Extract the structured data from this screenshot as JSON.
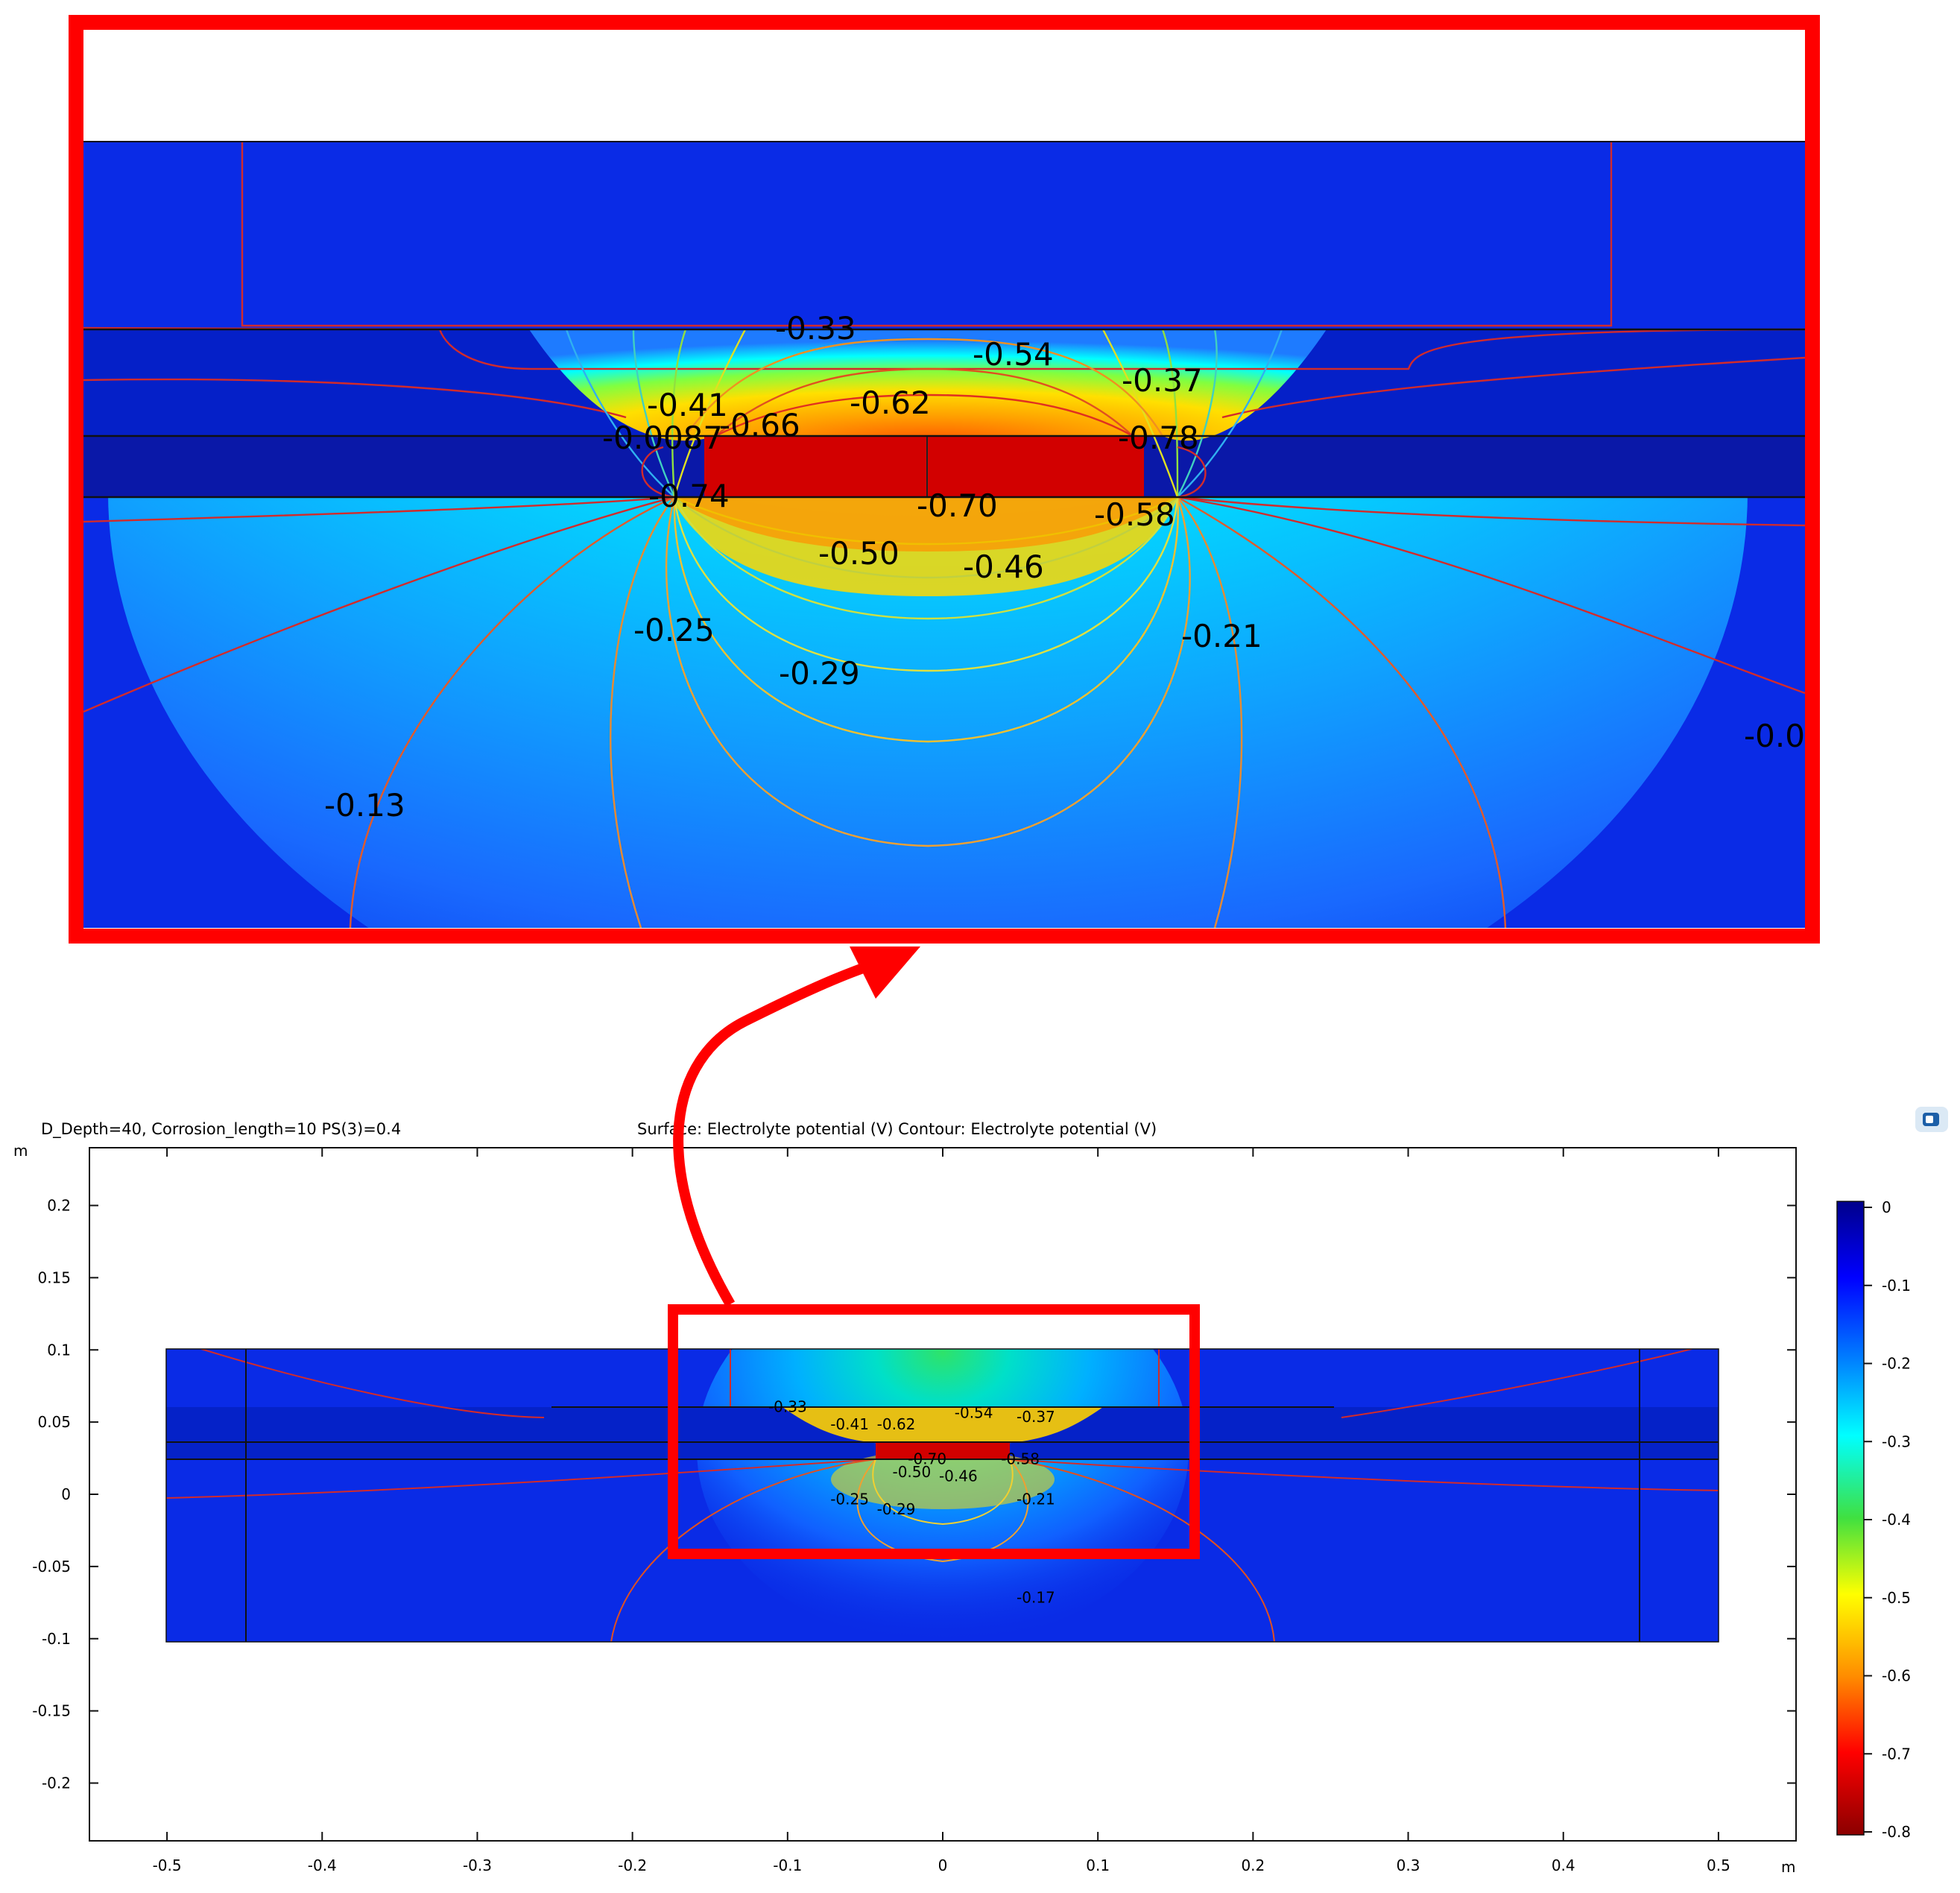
{
  "header": {
    "left_title": "D_Depth=40, Corrosion_length=10 PS(3)=0.4",
    "right_title": "Surface: Electrolyte potential (V)  Contour: Electrolyte potential (V)"
  },
  "axis_unit_y": "m",
  "axis_unit_x": "m",
  "chart_data": {
    "type": "heatmap",
    "title": "Surface: Electrolyte potential (V)  Contour: Electrolyte potential (V)",
    "subtitle": "D_Depth=40, Corrosion_length=10 PS(3)=0.4",
    "xlabel": "m",
    "ylabel": "m",
    "xlim": [
      -0.55,
      0.55
    ],
    "ylim": [
      -0.24,
      0.24
    ],
    "x_ticks": [
      -0.5,
      -0.4,
      -0.3,
      -0.2,
      -0.1,
      0,
      0.1,
      0.2,
      0.3,
      0.4,
      0.5
    ],
    "x_tick_labels": [
      "-0.5",
      "-0.4",
      "-0.3",
      "-0.2",
      "-0.1",
      "0",
      "0.1",
      "0.2",
      "0.3",
      "0.4",
      "0.5"
    ],
    "y_ticks": [
      0.2,
      0.15,
      0.1,
      0.05,
      0,
      -0.05,
      -0.1,
      -0.15,
      -0.2
    ],
    "y_tick_labels": [
      "0.2",
      "0.15",
      "0.1",
      "0.05",
      "0",
      "-0.05",
      "-0.1",
      "-0.15",
      "-0.2"
    ],
    "domain": {
      "x": [
        -0.5,
        0.5
      ],
      "y": [
        -0.1,
        0.1
      ]
    },
    "anode": {
      "x": [
        -0.05,
        0.05
      ],
      "y": [
        0.02,
        0.035
      ]
    },
    "colorbar": {
      "ticks": [
        0,
        -0.1,
        -0.2,
        -0.3,
        -0.4,
        -0.5,
        -0.6,
        -0.7,
        -0.8
      ],
      "tick_labels": [
        "0",
        "-0.1",
        "-0.2",
        "-0.3",
        "-0.4",
        "-0.5",
        "-0.6",
        "-0.7",
        "-0.8"
      ],
      "range": [
        -0.8,
        0
      ],
      "colormap": "rainbow",
      "colors": [
        "#00008b",
        "#0000ff",
        "#00bfff",
        "#00ffff",
        "#3cdc3c",
        "#ffff00",
        "#ff8c00",
        "#ff0000",
        "#8b0000"
      ]
    },
    "contour_labels_main": [
      {
        "label": "-0.33",
        "x": -0.1,
        "y": 0.057
      },
      {
        "label": "-0.54",
        "x": 0.02,
        "y": 0.053
      },
      {
        "label": "-0.37",
        "x": 0.06,
        "y": 0.05
      },
      {
        "label": "-0.41",
        "x": -0.06,
        "y": 0.045
      },
      {
        "label": "-0.62",
        "x": -0.03,
        "y": 0.045
      },
      {
        "label": "-0.70",
        "x": -0.01,
        "y": 0.021
      },
      {
        "label": "-0.58",
        "x": 0.05,
        "y": 0.021
      },
      {
        "label": "-0.50",
        "x": -0.02,
        "y": 0.012
      },
      {
        "label": "-0.46",
        "x": 0.01,
        "y": 0.009
      },
      {
        "label": "-0.25",
        "x": -0.06,
        "y": -0.007
      },
      {
        "label": "-0.29",
        "x": -0.03,
        "y": -0.014
      },
      {
        "label": "-0.21",
        "x": 0.06,
        "y": -0.007
      },
      {
        "label": "-0.17",
        "x": 0.06,
        "y": -0.075
      }
    ],
    "contour_labels_zoom": [
      "-0.33",
      "-0.54",
      "-0.37",
      "-0.41",
      "-0.66",
      "-0.62",
      "-0.0087",
      "-0.78",
      "-0.74",
      "-0.70",
      "-0.58",
      "-0.50",
      "-0.46",
      "-0.25",
      "-0.21",
      "-0.29",
      "-0.13",
      "-0.0"
    ]
  },
  "colors": {
    "highlight": "#ff0000",
    "domain_blue": "#0a2be6",
    "deep_blue": "#0018b0"
  }
}
